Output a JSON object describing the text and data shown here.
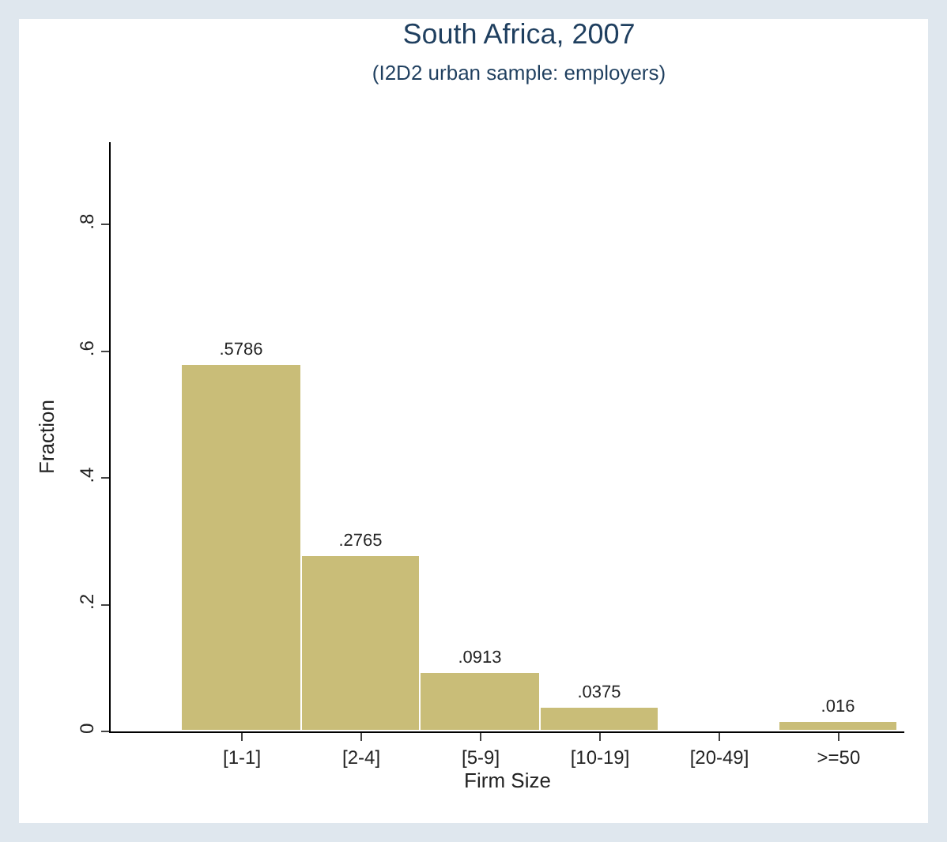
{
  "chart_data": {
    "type": "bar",
    "title": "South Africa, 2007",
    "subtitle": "(I2D2 urban sample: employers)",
    "xlabel": "Firm Size",
    "ylabel": "Fraction",
    "categories": [
      "[1-1]",
      "[2-4]",
      "[5-9]",
      "[10-19]",
      "[20-49]",
      ">=50"
    ],
    "values": [
      0.5786,
      0.2765,
      0.0913,
      0.0375,
      null,
      0.016
    ],
    "value_labels": [
      ".5786",
      ".2765",
      ".0913",
      ".0375",
      null,
      ".016"
    ],
    "color": "#c9bd78",
    "ylim": [
      0,
      0.93
    ],
    "yticks": [
      0,
      {
        "value": 0.2,
        "label": ".2"
      },
      {
        "value": 0.4,
        "label": ".4"
      },
      {
        "value": 0.6,
        "label": ".6"
      },
      {
        "value": 0.8,
        "label": ".8"
      }
    ],
    "grid": false,
    "legend": false
  }
}
